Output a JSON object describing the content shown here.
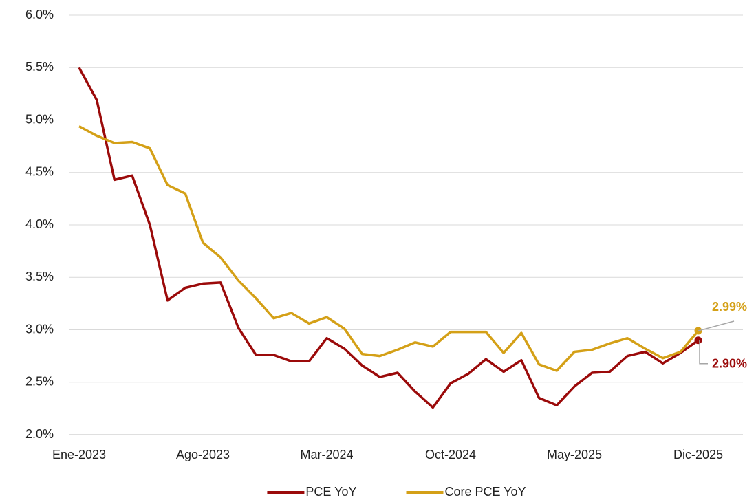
{
  "chart_data": {
    "type": "line",
    "categories": [
      "Ene-2023",
      null,
      null,
      null,
      null,
      null,
      null,
      "Ago-2023",
      null,
      null,
      null,
      null,
      null,
      null,
      "Mar-2024",
      null,
      null,
      null,
      null,
      null,
      null,
      "Oct-2024",
      null,
      null,
      null,
      null,
      null,
      null,
      "May-2025",
      null,
      null,
      null,
      null,
      null,
      null,
      "Dic-2025"
    ],
    "series": [
      {
        "name": "PCE YoY",
        "color": "#9b0a0a",
        "values": [
          5.5,
          5.19,
          4.43,
          4.47,
          4.0,
          3.28,
          3.4,
          3.44,
          3.45,
          3.02,
          2.76,
          2.76,
          2.7,
          2.7,
          2.92,
          2.82,
          2.66,
          2.55,
          2.59,
          2.41,
          2.26,
          2.49,
          2.58,
          2.72,
          2.6,
          2.71,
          2.35,
          2.28,
          2.46,
          2.59,
          2.6,
          2.75,
          2.79,
          2.68,
          2.78,
          2.9
        ],
        "value_labels": [
          null,
          null,
          null,
          null,
          null,
          null,
          null,
          null,
          null,
          null,
          null,
          null,
          null,
          null,
          null,
          null,
          null,
          null,
          null,
          null,
          null,
          null,
          null,
          null,
          null,
          null,
          null,
          null,
          null,
          null,
          null,
          null,
          null,
          null,
          null,
          "2.90%"
        ]
      },
      {
        "name": "Core PCE YoY",
        "color": "#d4a017",
        "values": [
          4.94,
          4.85,
          4.78,
          4.79,
          4.73,
          4.38,
          4.3,
          3.83,
          3.69,
          3.47,
          3.3,
          3.11,
          3.16,
          3.06,
          3.12,
          3.01,
          2.77,
          2.75,
          2.81,
          2.88,
          2.84,
          2.98,
          2.98,
          2.98,
          2.78,
          2.97,
          2.67,
          2.61,
          2.79,
          2.81,
          2.87,
          2.92,
          2.82,
          2.73,
          2.79,
          2.99
        ],
        "value_labels": [
          null,
          null,
          null,
          null,
          null,
          null,
          null,
          null,
          null,
          null,
          null,
          null,
          null,
          null,
          null,
          null,
          null,
          null,
          null,
          null,
          null,
          null,
          null,
          null,
          null,
          null,
          null,
          null,
          null,
          null,
          null,
          null,
          null,
          null,
          null,
          "2.99%"
        ]
      }
    ],
    "ylim": [
      2.0,
      6.0
    ],
    "yticks": [
      {
        "value": 2.0,
        "label": "2.0%"
      },
      {
        "value": 2.5,
        "label": "2.5%"
      },
      {
        "value": 3.0,
        "label": "3.0%"
      },
      {
        "value": 3.5,
        "label": "3.5%"
      },
      {
        "value": 4.0,
        "label": "4.0%"
      },
      {
        "value": 4.5,
        "label": "4.5%"
      },
      {
        "value": 5.0,
        "label": "5.0%"
      },
      {
        "value": 5.5,
        "label": "5.5%"
      },
      {
        "value": 6.0,
        "label": "6.0%"
      }
    ],
    "grid": true,
    "legend": "bottom"
  }
}
